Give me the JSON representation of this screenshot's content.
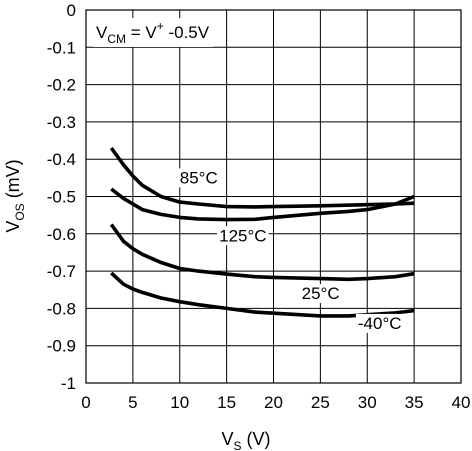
{
  "chart_data": {
    "type": "line",
    "title": "",
    "xlabel": {
      "main": "V",
      "sub": "S",
      "unit": " (V)"
    },
    "ylabel": {
      "main": "V",
      "sub": "OS",
      "unit": " (mV)"
    },
    "xlim": [
      0,
      40
    ],
    "ylim": [
      -1,
      0
    ],
    "xticks": [
      0,
      5,
      10,
      15,
      20,
      25,
      30,
      35,
      40
    ],
    "xtick_labels": [
      "0",
      "5",
      "10",
      "15",
      "20",
      "25",
      "30",
      "35",
      "40"
    ],
    "yticks": [
      0,
      -0.1,
      -0.2,
      -0.3,
      -0.4,
      -0.5,
      -0.6,
      -0.7,
      -0.8,
      -0.9,
      -1
    ],
    "ytick_labels": [
      "0",
      "-0.1",
      "-0.2",
      "-0.3",
      "-0.4",
      "-0.5",
      "-0.6",
      "-0.7",
      "-0.8",
      "-0.9",
      "-1"
    ],
    "grid": true,
    "condition": {
      "a": "V",
      "a_sub": "CM",
      "b": " = V",
      "b_sup": "+",
      "c": " -0.5V"
    },
    "series": [
      {
        "name": "85°C",
        "x": [
          2.7,
          4,
          5,
          6,
          8,
          10,
          12,
          15,
          18,
          20,
          25,
          30,
          33,
          35
        ],
        "y": [
          -0.37,
          -0.415,
          -0.445,
          -0.47,
          -0.5,
          -0.515,
          -0.52,
          -0.527,
          -0.528,
          -0.527,
          -0.525,
          -0.522,
          -0.52,
          -0.518
        ]
      },
      {
        "name": "125°C",
        "x": [
          2.7,
          4,
          5,
          6,
          8,
          10,
          12,
          15,
          18,
          20,
          25,
          28,
          30,
          33,
          35
        ],
        "y": [
          -0.48,
          -0.505,
          -0.52,
          -0.535,
          -0.548,
          -0.556,
          -0.56,
          -0.562,
          -0.561,
          -0.556,
          -0.545,
          -0.54,
          -0.535,
          -0.52,
          -0.5
        ]
      },
      {
        "name": "25°C",
        "x": [
          2.7,
          4,
          5,
          6,
          8,
          10,
          12,
          15,
          18,
          20,
          25,
          28,
          30,
          33,
          35
        ],
        "y": [
          -0.575,
          -0.62,
          -0.64,
          -0.655,
          -0.677,
          -0.693,
          -0.7,
          -0.708,
          -0.715,
          -0.717,
          -0.72,
          -0.722,
          -0.72,
          -0.715,
          -0.707
        ]
      },
      {
        "name": "-40°C",
        "x": [
          2.7,
          4,
          5,
          6,
          8,
          10,
          12,
          15,
          18,
          20,
          25,
          28,
          30,
          33,
          35
        ],
        "y": [
          -0.705,
          -0.735,
          -0.748,
          -0.757,
          -0.772,
          -0.782,
          -0.79,
          -0.8,
          -0.81,
          -0.813,
          -0.82,
          -0.82,
          -0.817,
          -0.812,
          -0.806
        ]
      }
    ],
    "annotations": [
      {
        "text": "85°C",
        "x": 10,
        "y": -0.465
      },
      {
        "text": "125°C",
        "x": 14.2,
        "y": -0.62
      },
      {
        "text": "25°C",
        "x": 23,
        "y": -0.775
      },
      {
        "text": "-40°C",
        "x": 29,
        "y": -0.855
      }
    ]
  }
}
